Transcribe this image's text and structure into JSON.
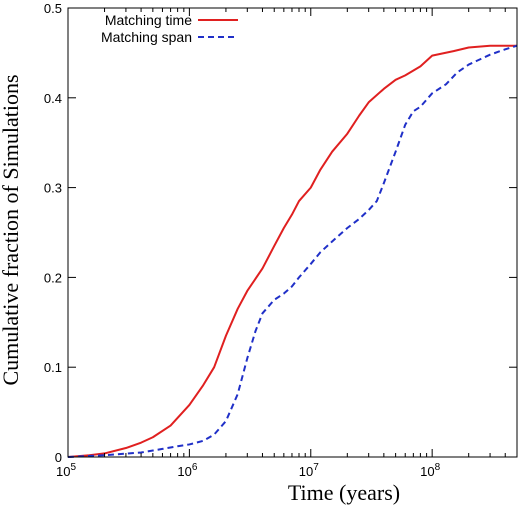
{
  "chart_data": {
    "type": "line",
    "title": "",
    "xlabel": "Time (years)",
    "ylabel": "Cumulative fraction of Simulations",
    "xscale": "log",
    "xlim": [
      100000,
      500000000
    ],
    "ylim": [
      0,
      0.5
    ],
    "grid": false,
    "legend_position": "top-left",
    "x_ticks": [
      {
        "value": 100000,
        "base": "10",
        "exp": "5"
      },
      {
        "value": 1000000,
        "base": "10",
        "exp": "6"
      },
      {
        "value": 10000000,
        "base": "10",
        "exp": "7"
      },
      {
        "value": 100000000,
        "base": "10",
        "exp": "8"
      }
    ],
    "y_ticks": [
      {
        "value": 0,
        "label": "0"
      },
      {
        "value": 0.1,
        "label": "0.1"
      },
      {
        "value": 0.2,
        "label": "0.2"
      },
      {
        "value": 0.3,
        "label": "0.3"
      },
      {
        "value": 0.4,
        "label": "0.4"
      },
      {
        "value": 0.5,
        "label": "0.5"
      }
    ],
    "series": [
      {
        "name": "Matching time",
        "color": "#e02020",
        "style": "solid",
        "points": [
          [
            100000,
            0.0
          ],
          [
            150000,
            0.002
          ],
          [
            200000,
            0.004
          ],
          [
            300000,
            0.01
          ],
          [
            400000,
            0.016
          ],
          [
            500000,
            0.022
          ],
          [
            700000,
            0.035
          ],
          [
            1000000,
            0.058
          ],
          [
            1300000,
            0.08
          ],
          [
            1600000,
            0.1
          ],
          [
            2000000,
            0.135
          ],
          [
            2500000,
            0.165
          ],
          [
            3000000,
            0.185
          ],
          [
            4000000,
            0.21
          ],
          [
            5000000,
            0.235
          ],
          [
            6000000,
            0.255
          ],
          [
            7000000,
            0.27
          ],
          [
            8000000,
            0.285
          ],
          [
            10000000,
            0.3
          ],
          [
            12000000,
            0.32
          ],
          [
            15000000,
            0.34
          ],
          [
            20000000,
            0.36
          ],
          [
            25000000,
            0.38
          ],
          [
            30000000,
            0.395
          ],
          [
            40000000,
            0.41
          ],
          [
            50000000,
            0.42
          ],
          [
            60000000,
            0.425
          ],
          [
            80000000,
            0.435
          ],
          [
            100000000,
            0.447
          ],
          [
            150000000,
            0.452
          ],
          [
            200000000,
            0.456
          ],
          [
            300000000,
            0.458
          ],
          [
            500000000,
            0.458
          ]
        ]
      },
      {
        "name": "Matching span",
        "color": "#2030c8",
        "style": "dashed",
        "points": [
          [
            100000,
            0.0
          ],
          [
            200000,
            0.002
          ],
          [
            400000,
            0.005
          ],
          [
            600000,
            0.009
          ],
          [
            800000,
            0.012
          ],
          [
            1000000,
            0.014
          ],
          [
            1300000,
            0.018
          ],
          [
            1600000,
            0.025
          ],
          [
            2000000,
            0.04
          ],
          [
            2500000,
            0.07
          ],
          [
            3000000,
            0.11
          ],
          [
            3500000,
            0.14
          ],
          [
            4000000,
            0.16
          ],
          [
            5000000,
            0.175
          ],
          [
            6000000,
            0.182
          ],
          [
            7000000,
            0.19
          ],
          [
            8000000,
            0.2
          ],
          [
            10000000,
            0.215
          ],
          [
            12000000,
            0.228
          ],
          [
            15000000,
            0.24
          ],
          [
            20000000,
            0.255
          ],
          [
            25000000,
            0.265
          ],
          [
            30000000,
            0.275
          ],
          [
            35000000,
            0.285
          ],
          [
            40000000,
            0.305
          ],
          [
            50000000,
            0.34
          ],
          [
            60000000,
            0.37
          ],
          [
            70000000,
            0.385
          ],
          [
            80000000,
            0.39
          ],
          [
            100000000,
            0.405
          ],
          [
            130000000,
            0.415
          ],
          [
            160000000,
            0.428
          ],
          [
            200000000,
            0.437
          ],
          [
            300000000,
            0.448
          ],
          [
            400000000,
            0.454
          ],
          [
            500000000,
            0.458
          ]
        ]
      }
    ]
  }
}
